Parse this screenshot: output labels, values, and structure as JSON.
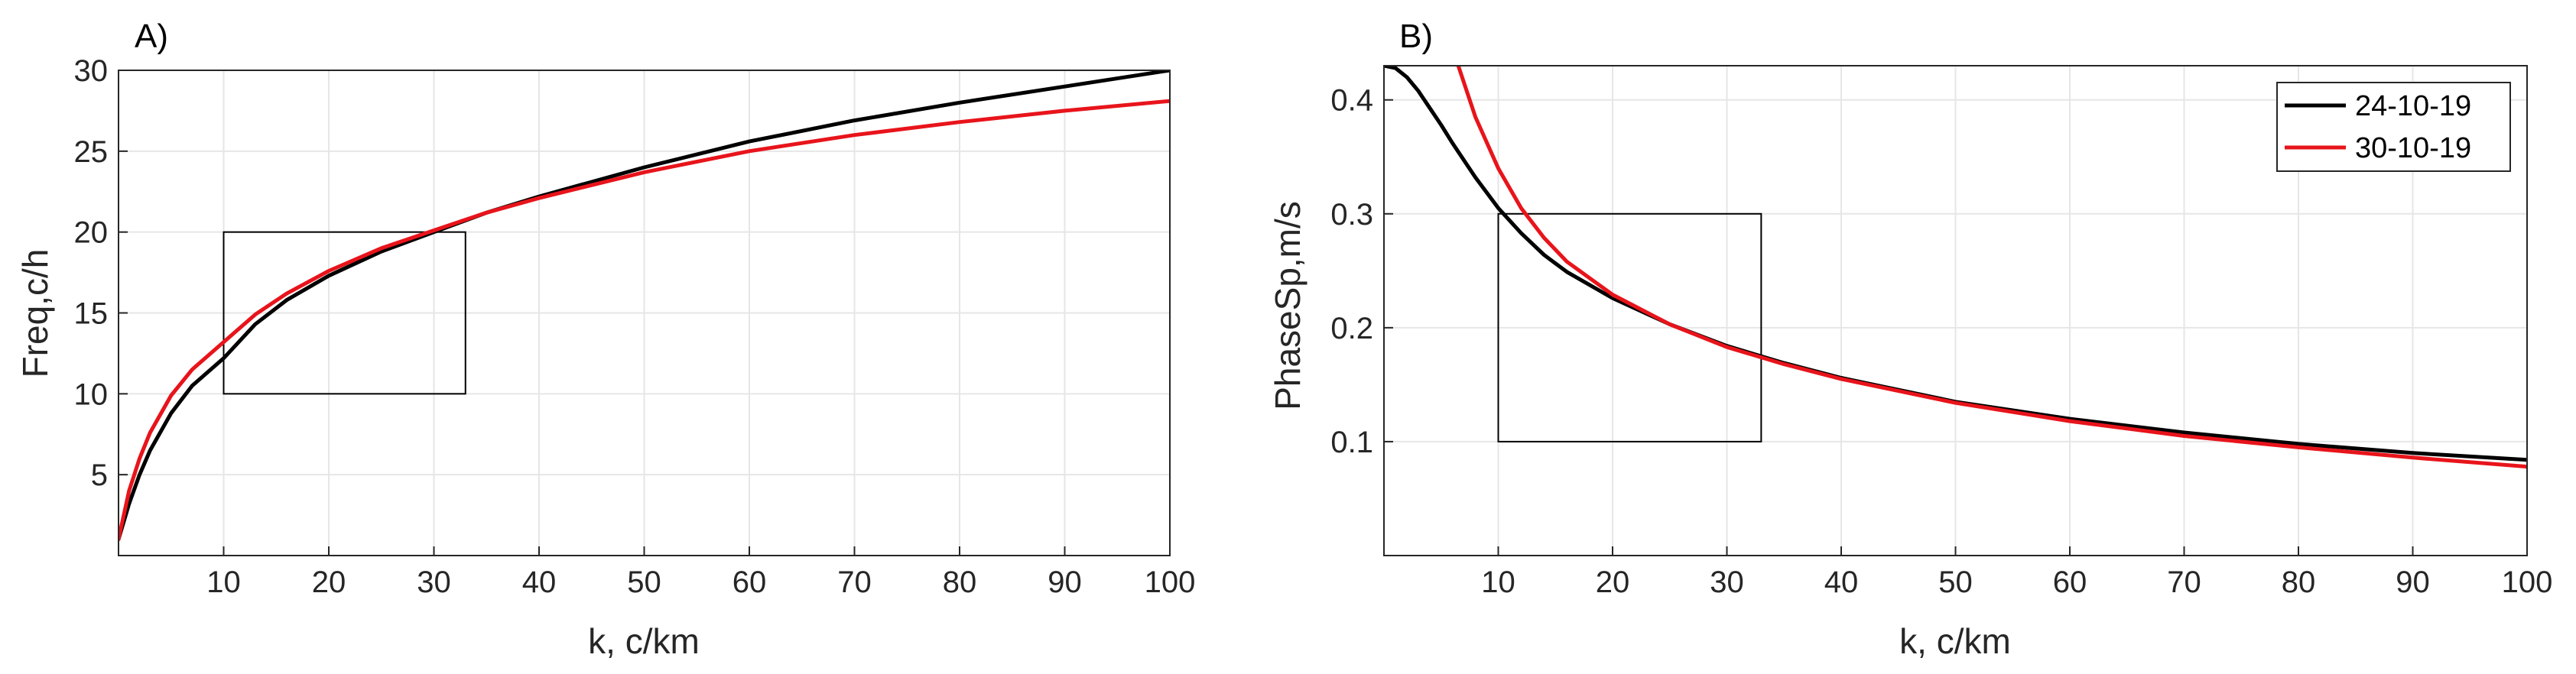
{
  "chart_data": [
    {
      "type": "line",
      "panel_label": "A)",
      "xlabel": "k, c/km",
      "ylabel": "Freq,c/h",
      "xlim": [
        0,
        100
      ],
      "ylim": [
        0,
        30
      ],
      "xticks": [
        10,
        20,
        30,
        40,
        50,
        60,
        70,
        80,
        90,
        100
      ],
      "yticks": [
        5,
        10,
        15,
        20,
        25,
        30
      ],
      "xtick_labels": [
        "10",
        "20",
        "30",
        "40",
        "50",
        "60",
        "70",
        "80",
        "90",
        "100"
      ],
      "ytick_labels": [
        "5",
        "10",
        "15",
        "20",
        "25",
        "30"
      ],
      "grid": true,
      "box": {
        "x": [
          10,
          33
        ],
        "y": [
          10,
          20
        ]
      },
      "series": [
        {
          "name": "24-10-19",
          "color": "#000000",
          "x": [
            0,
            1,
            2,
            3,
            5,
            7,
            10,
            13,
            16,
            20,
            25,
            30,
            35,
            40,
            50,
            60,
            70,
            80,
            90,
            100
          ],
          "y": [
            1.0,
            3.2,
            5.0,
            6.5,
            8.8,
            10.5,
            12.2,
            14.3,
            15.8,
            17.3,
            18.8,
            20.0,
            21.2,
            22.2,
            24.0,
            25.6,
            26.9,
            28.0,
            29.0,
            30.0
          ]
        },
        {
          "name": "30-10-19",
          "color": "#e8141b",
          "x": [
            0,
            1,
            2,
            3,
            5,
            7,
            10,
            13,
            16,
            20,
            25,
            30,
            35,
            40,
            50,
            60,
            70,
            80,
            90,
            100
          ],
          "y": [
            1.0,
            4.0,
            6.0,
            7.6,
            9.9,
            11.5,
            13.2,
            14.9,
            16.2,
            17.6,
            19.0,
            20.1,
            21.2,
            22.1,
            23.7,
            25.0,
            26.0,
            26.8,
            27.5,
            28.1
          ]
        }
      ]
    },
    {
      "type": "line",
      "panel_label": "B)",
      "xlabel": "k, c/km",
      "ylabel": "PhaseSp,m/s",
      "xlim": [
        0,
        100
      ],
      "ylim": [
        0,
        0.43
      ],
      "xticks": [
        10,
        20,
        30,
        40,
        50,
        60,
        70,
        80,
        90,
        100
      ],
      "yticks": [
        0.1,
        0.2,
        0.3,
        0.4
      ],
      "xtick_labels": [
        "10",
        "20",
        "30",
        "40",
        "50",
        "60",
        "70",
        "80",
        "90",
        "100"
      ],
      "ytick_labels": [
        "0.1",
        "0.2",
        "0.3",
        "0.4"
      ],
      "grid": true,
      "box": {
        "x": [
          10,
          33
        ],
        "y": [
          0.1,
          0.3
        ]
      },
      "legend": {
        "position": "top-right",
        "entries": [
          "24-10-19",
          "30-10-19"
        ]
      },
      "series": [
        {
          "name": "24-10-19",
          "color": "#000000",
          "x": [
            0,
            1,
            2,
            3,
            4,
            5,
            6,
            8,
            10,
            12,
            14,
            16,
            20,
            25,
            30,
            35,
            40,
            50,
            60,
            70,
            80,
            90,
            100
          ],
          "y": [
            0.43,
            0.428,
            0.42,
            0.408,
            0.393,
            0.378,
            0.362,
            0.332,
            0.305,
            0.283,
            0.264,
            0.249,
            0.226,
            0.203,
            0.184,
            0.169,
            0.156,
            0.135,
            0.12,
            0.108,
            0.098,
            0.09,
            0.084
          ]
        },
        {
          "name": "30-10-19",
          "color": "#e8141b",
          "x": [
            6.5,
            8,
            10,
            12,
            14,
            16,
            20,
            25,
            30,
            35,
            40,
            50,
            60,
            70,
            80,
            90,
            100
          ],
          "y": [
            0.43,
            0.385,
            0.34,
            0.305,
            0.279,
            0.258,
            0.229,
            0.203,
            0.183,
            0.168,
            0.155,
            0.134,
            0.118,
            0.105,
            0.095,
            0.086,
            0.078
          ]
        }
      ]
    }
  ]
}
